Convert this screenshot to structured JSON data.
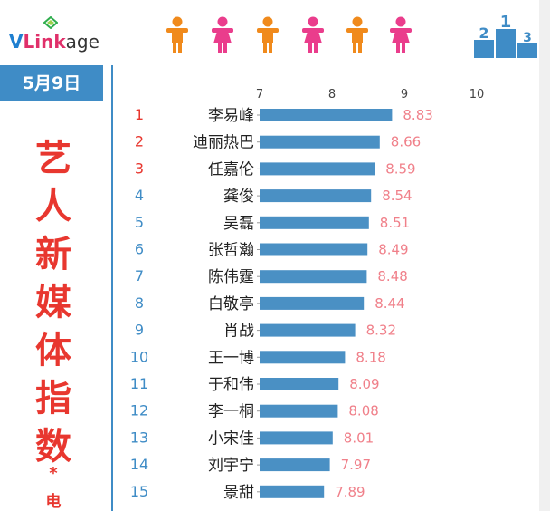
{
  "brand": {
    "logo_v": "V",
    "logo_link": "Link",
    "logo_age": "age"
  },
  "date": "5月9日",
  "title_chars": [
    "艺",
    "人",
    "新",
    "媒",
    "体",
    "指",
    "数"
  ],
  "title_star": "*",
  "title_tail": "电",
  "colors": {
    "bar": "#4a90c4",
    "value_label": "#f0808a",
    "rank_top3": "#e8372f",
    "rank_other": "#3f8cc6",
    "accent_blue": "#3f8cc6",
    "figure_orange": "#f08a1c",
    "figure_pink": "#ea3d8c"
  },
  "header_icons": [
    "person-icon",
    "person-icon",
    "person-icon",
    "person-icon",
    "person-icon",
    "person-icon",
    "podium-icon"
  ],
  "chart_data": {
    "type": "bar",
    "orientation": "horizontal",
    "xlim": [
      7,
      10
    ],
    "xticks": [
      "7",
      "8",
      "9",
      "10"
    ],
    "ranks": [
      "1",
      "2",
      "3",
      "4",
      "5",
      "6",
      "7",
      "8",
      "9",
      "10",
      "11",
      "12",
      "13",
      "14",
      "15"
    ],
    "categories": [
      "李易峰",
      "迪丽热巴",
      "任嘉伦",
      "龚俊",
      "吴磊",
      "张哲瀚",
      "陈伟霆",
      "白敬亭",
      "肖战",
      "王一博",
      "于和伟",
      "李一桐",
      "小宋佳",
      "刘宇宁",
      "景甜"
    ],
    "values": [
      8.83,
      8.66,
      8.59,
      8.54,
      8.51,
      8.49,
      8.48,
      8.44,
      8.32,
      8.18,
      8.09,
      8.08,
      8.01,
      7.97,
      7.89
    ],
    "value_labels": [
      "8.83",
      "8.66",
      "8.59",
      "8.54",
      "8.51",
      "8.49",
      "8.48",
      "8.44",
      "8.32",
      "8.18",
      "8.09",
      "8.08",
      "8.01",
      "7.97",
      "7.89"
    ],
    "grid": false
  }
}
